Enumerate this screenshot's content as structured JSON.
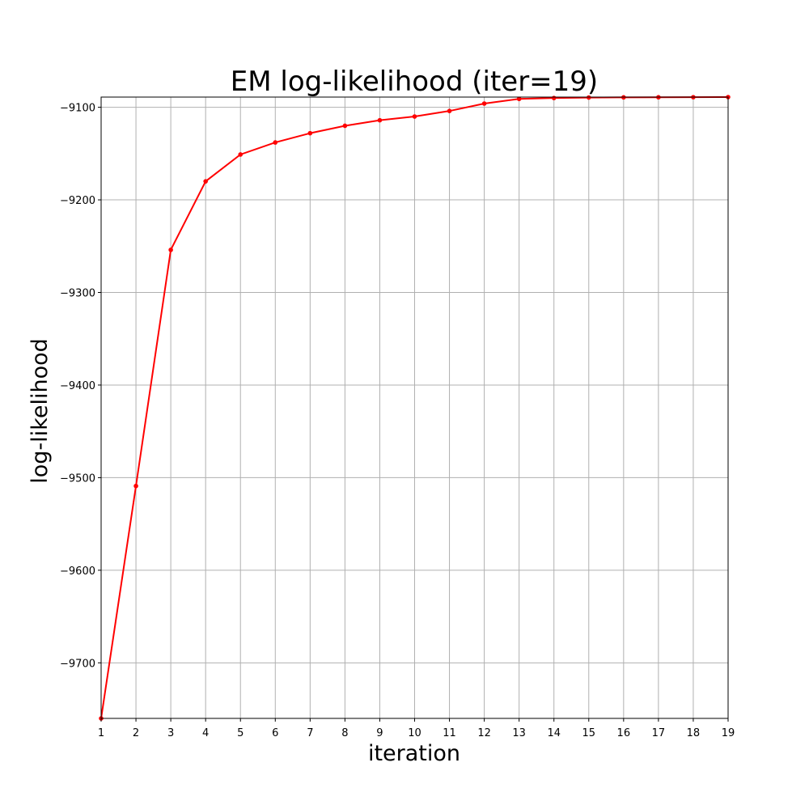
{
  "chart_data": {
    "type": "line",
    "title": "EM log-likelihood (iter=19)",
    "xlabel": "iteration",
    "ylabel": "log-likelihood",
    "xlim": [
      1,
      19
    ],
    "ylim": [
      -9760,
      -9089
    ],
    "xticks": [
      1,
      2,
      3,
      4,
      5,
      6,
      7,
      8,
      9,
      10,
      11,
      12,
      13,
      14,
      15,
      16,
      17,
      18,
      19
    ],
    "yticks": [
      -9700,
      -9600,
      -9500,
      -9400,
      -9300,
      -9200,
      -9100
    ],
    "ytick_labels": [
      "−9700",
      "−9600",
      "−9500",
      "−9400",
      "−9300",
      "−9200",
      "−9100"
    ],
    "grid": true,
    "series": [
      {
        "color": "#ff0000",
        "marker": "dot",
        "x": [
          1,
          2,
          3,
          4,
          5,
          6,
          7,
          8,
          9,
          10,
          11,
          12,
          13,
          14,
          15,
          16,
          17,
          18,
          19
        ],
        "y": [
          -9760,
          -9509,
          -9254,
          -9180,
          -9151,
          -9138,
          -9128,
          -9120,
          -9114,
          -9110,
          -9104,
          -9096,
          -9091,
          -9090,
          -9089.5,
          -9089.3,
          -9089.2,
          -9089.1,
          -9089
        ]
      }
    ]
  }
}
